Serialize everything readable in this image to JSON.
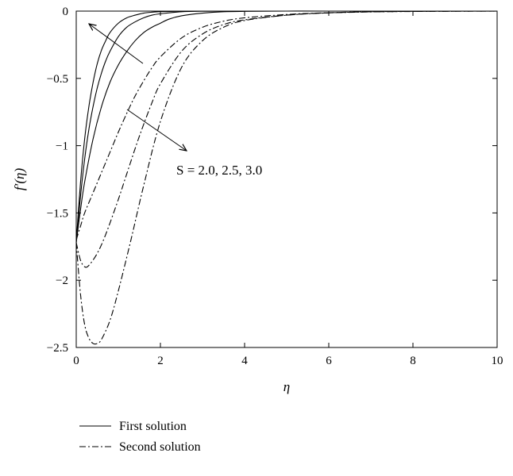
{
  "chart_data": {
    "type": "line",
    "title": "",
    "xlabel": "η",
    "ylabel": "f′(η)",
    "xlim": [
      0,
      10
    ],
    "ylim": [
      -2.5,
      0
    ],
    "x_ticks": [
      "0",
      "2",
      "4",
      "6",
      "8",
      "10"
    ],
    "y_ticks": [
      "0",
      "−0.5",
      "−1",
      "−1.5",
      "−2",
      "−2.5"
    ],
    "grid": false,
    "legend_position": "bottom-left-below",
    "legend": [
      {
        "label": "First solution",
        "style": "solid"
      },
      {
        "label": "Second solution",
        "style": "dashdot"
      }
    ],
    "annotation": {
      "text": "S = 2.0, 2.5, 3.0"
    },
    "series": [
      {
        "group": "First solution",
        "style": "solid",
        "x": [
          0,
          0.1,
          0.2,
          0.3,
          0.4,
          0.5,
          0.6,
          0.7,
          0.8,
          1.0,
          1.2,
          1.4,
          1.6,
          1.8,
          2.0,
          2.5,
          3.0,
          4.0,
          6.0,
          10.0
        ],
        "y": [
          -1.72,
          -1.28,
          -0.95,
          -0.71,
          -0.53,
          -0.39,
          -0.29,
          -0.22,
          -0.16,
          -0.09,
          -0.05,
          -0.03,
          -0.015,
          -0.008,
          -0.004,
          -0.001,
          0,
          0,
          0,
          0
        ]
      },
      {
        "group": "First solution",
        "style": "solid",
        "x": [
          0,
          0.1,
          0.2,
          0.3,
          0.4,
          0.5,
          0.6,
          0.7,
          0.8,
          1.0,
          1.2,
          1.4,
          1.6,
          1.8,
          2.0,
          2.5,
          3.0,
          4.0,
          6.0,
          10.0
        ],
        "y": [
          -1.72,
          -1.38,
          -1.1,
          -0.88,
          -0.71,
          -0.57,
          -0.46,
          -0.37,
          -0.3,
          -0.19,
          -0.12,
          -0.08,
          -0.05,
          -0.03,
          -0.02,
          -0.005,
          -0.001,
          0,
          0,
          0
        ]
      },
      {
        "group": "First solution",
        "style": "solid",
        "x": [
          0,
          0.1,
          0.2,
          0.4,
          0.6,
          0.8,
          1.0,
          1.2,
          1.4,
          1.6,
          1.8,
          2.0,
          2.2,
          2.5,
          3.0,
          3.5,
          4.0,
          5.0,
          6.0,
          10.0
        ],
        "y": [
          -1.72,
          -1.48,
          -1.27,
          -0.95,
          -0.71,
          -0.53,
          -0.4,
          -0.3,
          -0.22,
          -0.16,
          -0.12,
          -0.09,
          -0.06,
          -0.035,
          -0.015,
          -0.005,
          -0.002,
          0,
          0,
          0
        ]
      },
      {
        "group": "Second solution",
        "style": "dashdot",
        "x": [
          0,
          0.1,
          0.2,
          0.4,
          0.6,
          0.8,
          1.0,
          1.2,
          1.4,
          1.6,
          1.8,
          2.0,
          2.5,
          3.0,
          3.5,
          4.0,
          5.0,
          6.0,
          7.0,
          10.0
        ],
        "y": [
          -1.7,
          -1.6,
          -1.5,
          -1.35,
          -1.2,
          -1.05,
          -0.9,
          -0.76,
          -0.63,
          -0.52,
          -0.42,
          -0.34,
          -0.2,
          -0.12,
          -0.075,
          -0.05,
          -0.025,
          -0.012,
          -0.005,
          0
        ]
      },
      {
        "group": "Second solution",
        "style": "dashdot",
        "x": [
          0,
          0.1,
          0.2,
          0.3,
          0.5,
          0.7,
          1.0,
          1.2,
          1.5,
          1.8,
          2.0,
          2.5,
          3.0,
          3.5,
          4.0,
          5.0,
          6.0,
          7.0,
          8.0,
          10.0
        ],
        "y": [
          -1.72,
          -1.85,
          -1.9,
          -1.89,
          -1.8,
          -1.66,
          -1.4,
          -1.21,
          -0.93,
          -0.68,
          -0.54,
          -0.3,
          -0.17,
          -0.1,
          -0.065,
          -0.03,
          -0.013,
          -0.005,
          -0.002,
          0
        ]
      },
      {
        "group": "Second solution",
        "style": "dashdot",
        "x": [
          0,
          0.1,
          0.2,
          0.3,
          0.4,
          0.5,
          0.6,
          0.8,
          1.0,
          1.3,
          1.6,
          2.0,
          2.5,
          3.0,
          3.5,
          4.0,
          5.0,
          6.0,
          8.0,
          10.0
        ],
        "y": [
          -1.72,
          -2.1,
          -2.33,
          -2.43,
          -2.47,
          -2.47,
          -2.44,
          -2.3,
          -2.08,
          -1.7,
          -1.3,
          -0.82,
          -0.42,
          -0.22,
          -0.12,
          -0.07,
          -0.03,
          -0.013,
          -0.002,
          0
        ]
      }
    ]
  }
}
